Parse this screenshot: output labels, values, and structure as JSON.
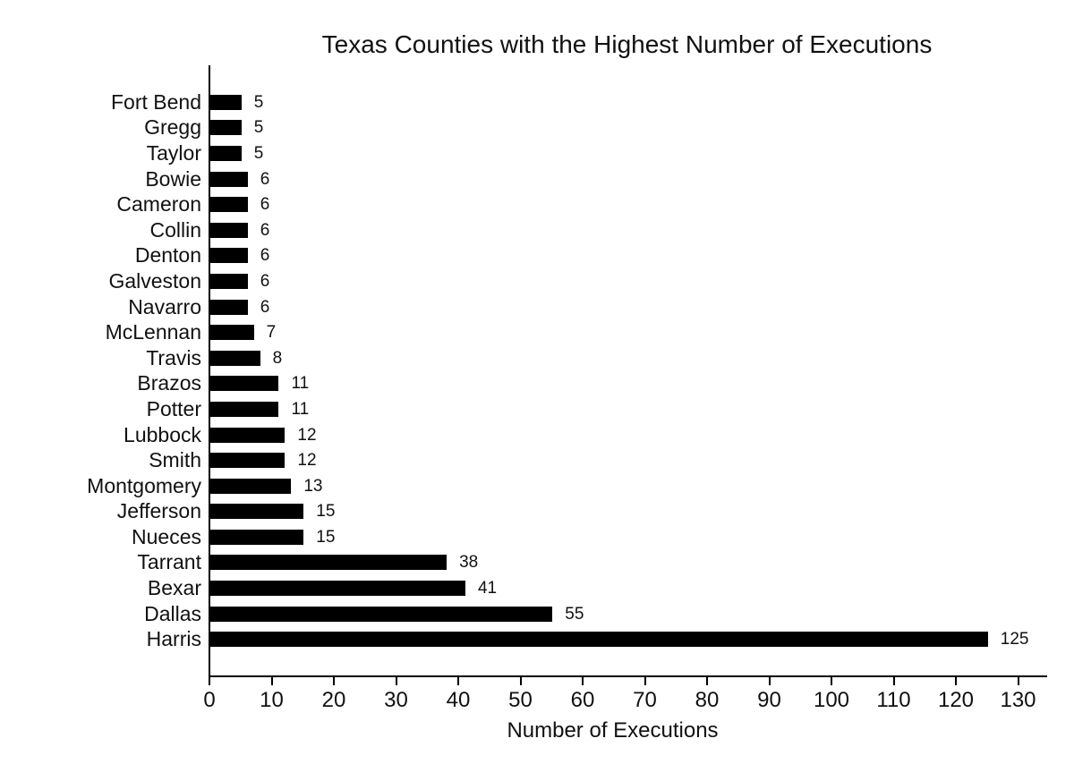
{
  "chart_data": {
    "type": "bar",
    "orientation": "horizontal",
    "title": "Texas Counties with the Highest Number of Executions",
    "xlabel": "Number of Executions",
    "ylabel": "",
    "categories": [
      "Fort Bend",
      "Gregg",
      "Taylor",
      "Bowie",
      "Cameron",
      "Collin",
      "Denton",
      "Galveston",
      "Navarro",
      "McLennan",
      "Travis",
      "Brazos",
      "Potter",
      "Lubbock",
      "Smith",
      "Montgomery",
      "Jefferson",
      "Nueces",
      "Tarrant",
      "Bexar",
      "Dallas",
      "Harris"
    ],
    "values": [
      5,
      5,
      5,
      6,
      6,
      6,
      6,
      6,
      6,
      7,
      8,
      11,
      11,
      12,
      12,
      13,
      15,
      15,
      38,
      41,
      55,
      125
    ],
    "x_ticks": [
      0,
      10,
      20,
      30,
      40,
      50,
      60,
      70,
      80,
      90,
      100,
      110,
      120,
      130
    ],
    "xlim": [
      0,
      134
    ],
    "grid": false,
    "legend": false,
    "value_labels_shown": true,
    "bar_color": "#000000",
    "background_color": "#ffffff",
    "text_color": "#111111"
  }
}
